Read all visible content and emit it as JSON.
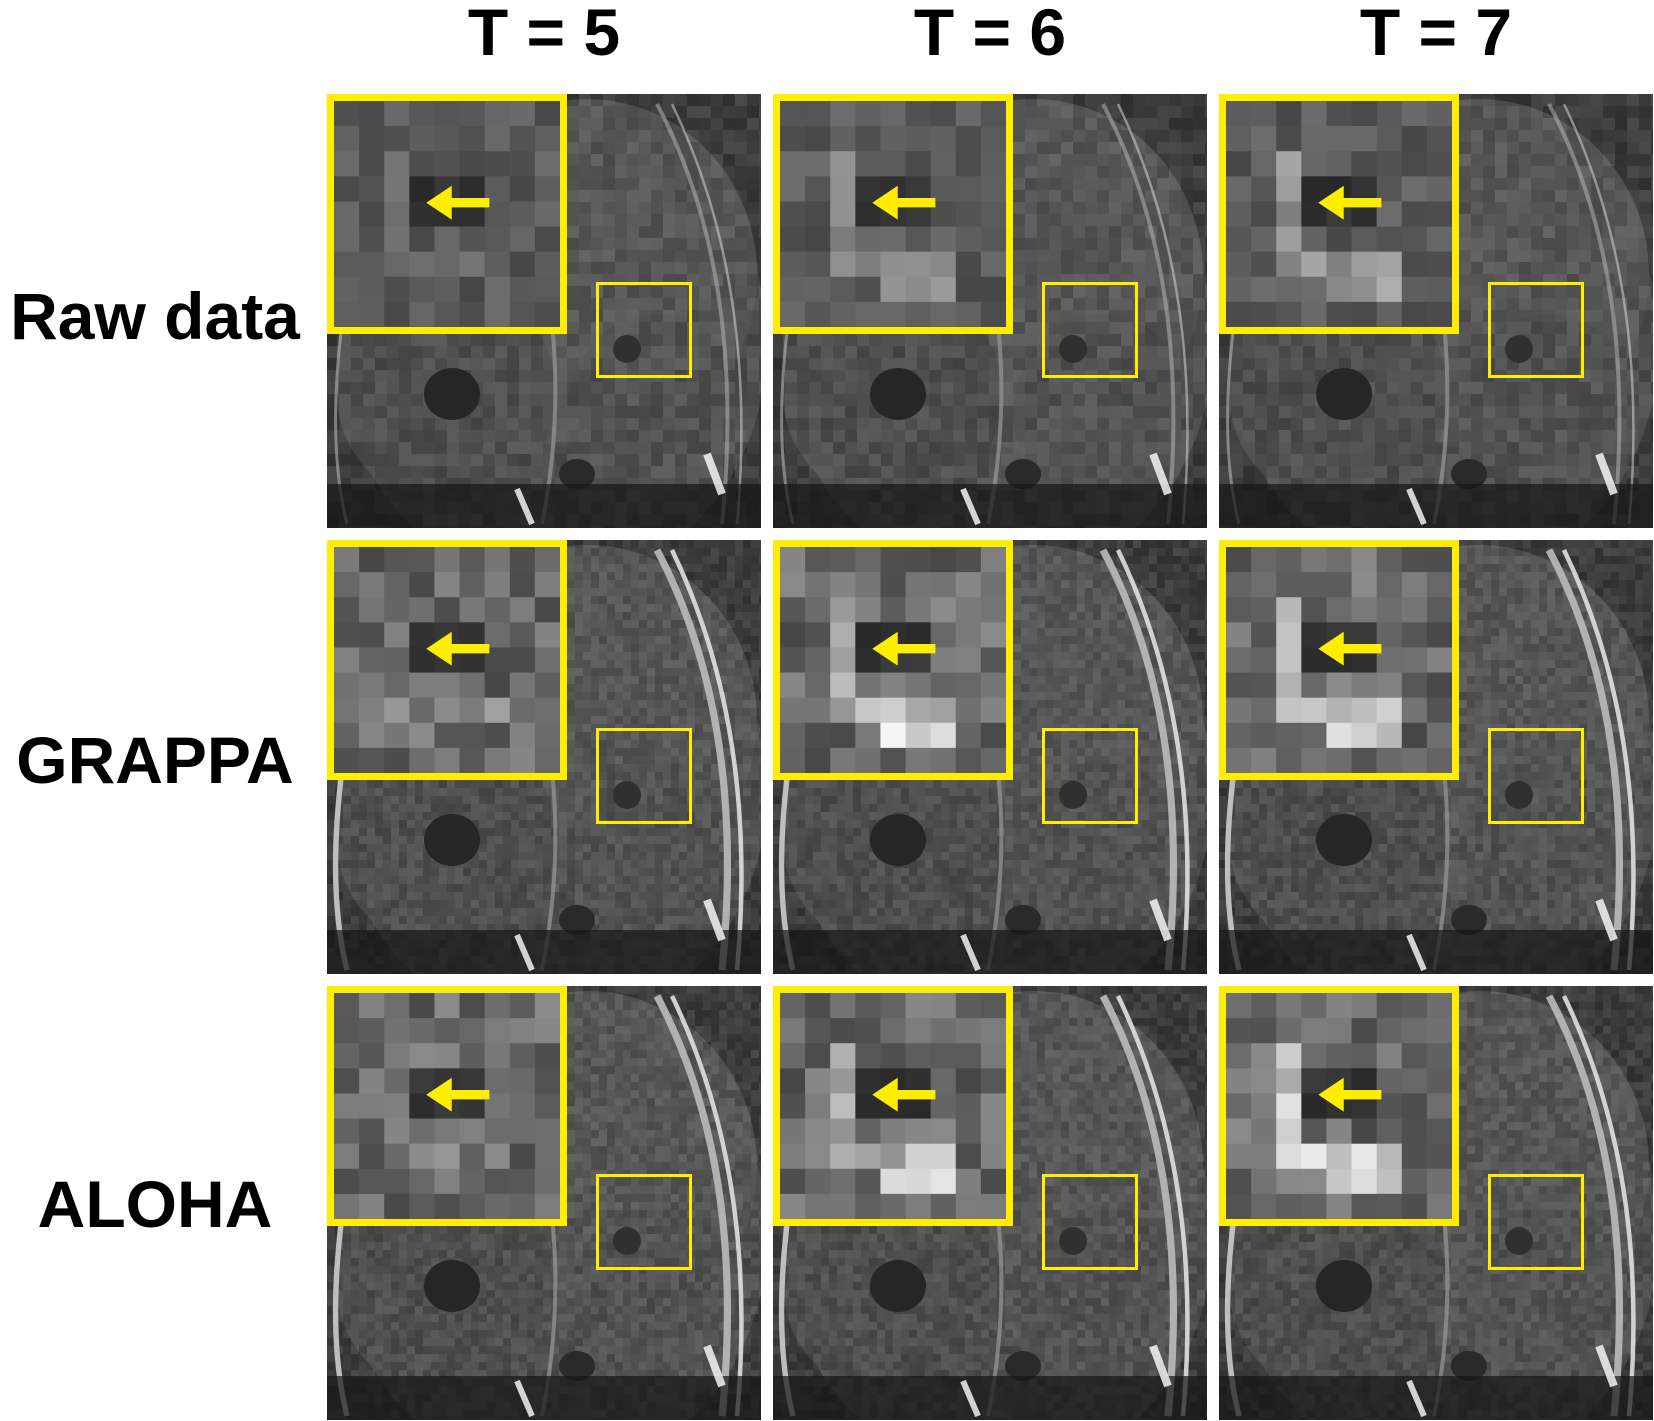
{
  "columns": [
    "T = 5",
    "T = 6",
    "T = 7"
  ],
  "rows": [
    "Raw data",
    "GRAPPA",
    "ALOHA"
  ],
  "colors": {
    "highlight": "#ffee00",
    "background": "#ffffff",
    "label": "#000000"
  },
  "panel_content": "grayscale MR image with zoomed inset and arrow"
}
